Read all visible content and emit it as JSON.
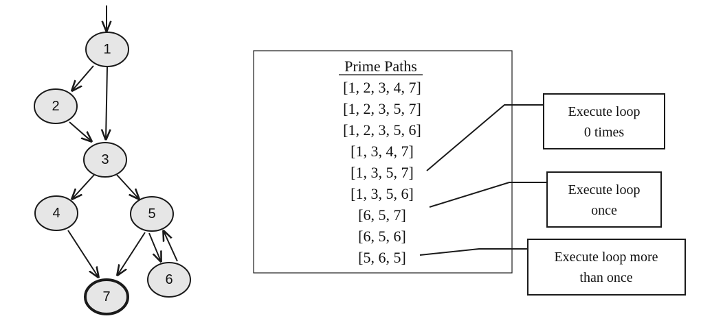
{
  "graph": {
    "nodes": [
      "1",
      "2",
      "3",
      "4",
      "5",
      "6",
      "7"
    ]
  },
  "prime_paths": {
    "title": "Prime Paths",
    "paths": [
      "[1, 2, 3, 4, 7]",
      "[1, 2, 3, 5, 7]",
      "[1, 2, 3, 5, 6]",
      "[1, 3, 4, 7]",
      "[1, 3, 5, 7]",
      "[1, 3, 5, 6]",
      "[6, 5, 7]",
      "[6, 5, 6]",
      "[5, 6, 5]"
    ]
  },
  "callouts": [
    {
      "line1": "Execute loop",
      "line2": "0 times"
    },
    {
      "line1": "Execute loop",
      "line2": "once"
    },
    {
      "line1": "Execute loop more",
      "line2": "than once"
    }
  ]
}
